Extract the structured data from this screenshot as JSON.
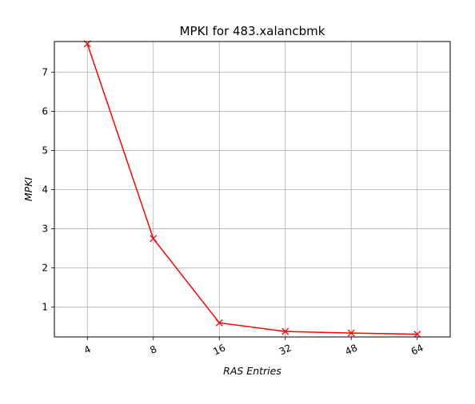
{
  "chart_data": {
    "type": "line",
    "title": "MPKI for 483.xalancbmk",
    "xlabel": "RAS Entries",
    "ylabel": "MPKI",
    "categories": [
      "4",
      "8",
      "16",
      "32",
      "48",
      "64"
    ],
    "series": [
      {
        "values": [
          7.72,
          2.75,
          0.6,
          0.38,
          0.34,
          0.31
        ],
        "color": "#ff0000",
        "marker": "x"
      }
    ],
    "yticks": [
      1,
      2,
      3,
      4,
      5,
      6,
      7
    ],
    "ylim": [
      0.24,
      7.78
    ],
    "grid": true,
    "legend": "none"
  }
}
